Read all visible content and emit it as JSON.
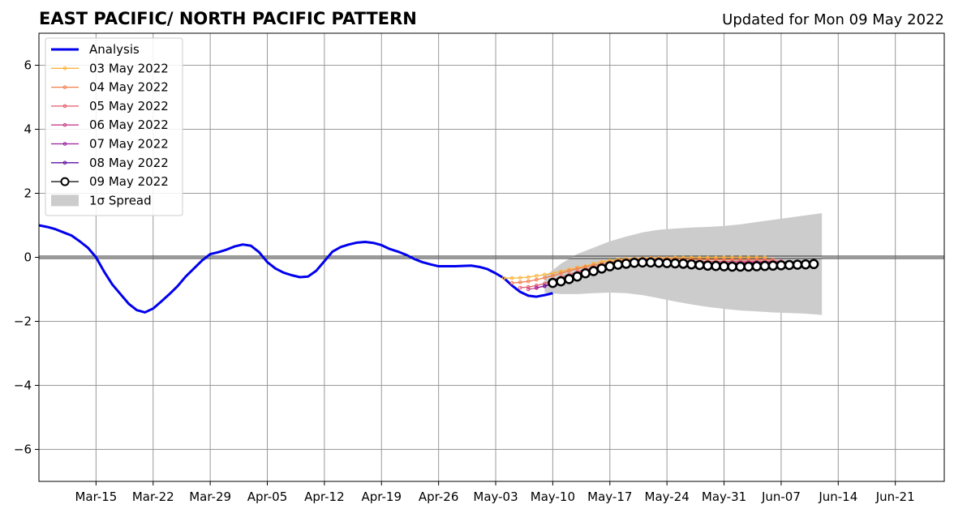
{
  "chart_data": {
    "type": "line",
    "title": "EAST PACIFIC/ NORTH PACIFIC PATTERN",
    "subtitle": "Updated for Mon 09 May 2022",
    "xlabel": "",
    "ylabel": "",
    "x_axis": {
      "kind": "date",
      "range": [
        "2022-03-08",
        "2022-06-27"
      ],
      "tick_dates": [
        "2022-03-15",
        "2022-03-22",
        "2022-03-29",
        "2022-04-05",
        "2022-04-12",
        "2022-04-19",
        "2022-04-26",
        "2022-05-03",
        "2022-05-10",
        "2022-05-17",
        "2022-05-24",
        "2022-05-31",
        "2022-06-07",
        "2022-06-14",
        "2022-06-21"
      ],
      "tick_labels": [
        "Mar-15",
        "Mar-22",
        "Mar-29",
        "Apr-05",
        "Apr-12",
        "Apr-19",
        "Apr-26",
        "May-03",
        "May-10",
        "May-17",
        "May-24",
        "May-31",
        "Jun-07",
        "Jun-14",
        "Jun-21"
      ]
    },
    "y_axis": {
      "range": [
        -7,
        7
      ],
      "ticks": [
        -6,
        -4,
        -2,
        0,
        2,
        4,
        6
      ],
      "tick_labels": [
        "−6",
        "−4",
        "−2",
        "0",
        "2",
        "4",
        "6"
      ]
    },
    "grid": true,
    "zero_line": true,
    "legend_position": "top-left",
    "analysis": {
      "name": "Analysis",
      "color": "#0000ee",
      "points": [
        [
          "2022-03-08",
          1.0
        ],
        [
          "2022-03-09",
          0.95
        ],
        [
          "2022-03-10",
          0.88
        ],
        [
          "2022-03-11",
          0.78
        ],
        [
          "2022-03-12",
          0.68
        ],
        [
          "2022-03-13",
          0.5
        ],
        [
          "2022-03-14",
          0.3
        ],
        [
          "2022-03-15",
          0.0
        ],
        [
          "2022-03-16",
          -0.45
        ],
        [
          "2022-03-17",
          -0.85
        ],
        [
          "2022-03-18",
          -1.15
        ],
        [
          "2022-03-19",
          -1.45
        ],
        [
          "2022-03-20",
          -1.65
        ],
        [
          "2022-03-21",
          -1.72
        ],
        [
          "2022-03-22",
          -1.6
        ],
        [
          "2022-03-23",
          -1.38
        ],
        [
          "2022-03-24",
          -1.15
        ],
        [
          "2022-03-25",
          -0.9
        ],
        [
          "2022-03-26",
          -0.6
        ],
        [
          "2022-03-27",
          -0.35
        ],
        [
          "2022-03-28",
          -0.1
        ],
        [
          "2022-03-29",
          0.1
        ],
        [
          "2022-03-30",
          0.16
        ],
        [
          "2022-03-31",
          0.24
        ],
        [
          "2022-04-01",
          0.34
        ],
        [
          "2022-04-02",
          0.4
        ],
        [
          "2022-04-03",
          0.36
        ],
        [
          "2022-04-04",
          0.16
        ],
        [
          "2022-04-05",
          -0.15
        ],
        [
          "2022-04-06",
          -0.35
        ],
        [
          "2022-04-07",
          -0.48
        ],
        [
          "2022-04-08",
          -0.56
        ],
        [
          "2022-04-09",
          -0.62
        ],
        [
          "2022-04-10",
          -0.6
        ],
        [
          "2022-04-11",
          -0.42
        ],
        [
          "2022-04-12",
          -0.12
        ],
        [
          "2022-04-13",
          0.18
        ],
        [
          "2022-04-14",
          0.32
        ],
        [
          "2022-04-15",
          0.4
        ],
        [
          "2022-04-16",
          0.46
        ],
        [
          "2022-04-17",
          0.48
        ],
        [
          "2022-04-18",
          0.45
        ],
        [
          "2022-04-19",
          0.38
        ],
        [
          "2022-04-20",
          0.26
        ],
        [
          "2022-04-21",
          0.18
        ],
        [
          "2022-04-22",
          0.08
        ],
        [
          "2022-04-23",
          -0.05
        ],
        [
          "2022-04-24",
          -0.15
        ],
        [
          "2022-04-25",
          -0.22
        ],
        [
          "2022-04-26",
          -0.28
        ],
        [
          "2022-04-27",
          -0.28
        ],
        [
          "2022-04-28",
          -0.28
        ],
        [
          "2022-04-29",
          -0.27
        ],
        [
          "2022-04-30",
          -0.26
        ],
        [
          "2022-05-01",
          -0.3
        ],
        [
          "2022-05-02",
          -0.37
        ],
        [
          "2022-05-03",
          -0.5
        ],
        [
          "2022-05-04",
          -0.65
        ],
        [
          "2022-05-05",
          -0.88
        ],
        [
          "2022-05-06",
          -1.08
        ],
        [
          "2022-05-07",
          -1.2
        ],
        [
          "2022-05-08",
          -1.23
        ],
        [
          "2022-05-09",
          -1.18
        ],
        [
          "2022-05-10",
          -1.12
        ]
      ]
    },
    "spread": {
      "name": "1σ Spread",
      "color": "#cccccc",
      "dates": [
        "2022-05-09",
        "2022-05-11",
        "2022-05-13",
        "2022-05-15",
        "2022-05-17",
        "2022-05-19",
        "2022-05-21",
        "2022-05-23",
        "2022-05-25",
        "2022-05-27",
        "2022-05-29",
        "2022-05-31",
        "2022-06-02",
        "2022-06-04",
        "2022-06-06",
        "2022-06-08",
        "2022-06-10",
        "2022-06-12"
      ],
      "upper": [
        -0.6,
        -0.2,
        0.1,
        0.3,
        0.5,
        0.65,
        0.78,
        0.86,
        0.9,
        0.93,
        0.95,
        0.98,
        1.03,
        1.1,
        1.17,
        1.24,
        1.31,
        1.38
      ],
      "lower": [
        -1.1,
        -1.15,
        -1.15,
        -1.12,
        -1.1,
        -1.12,
        -1.18,
        -1.28,
        -1.38,
        -1.47,
        -1.55,
        -1.61,
        -1.66,
        -1.69,
        -1.72,
        -1.74,
        -1.76,
        -1.8
      ]
    },
    "series": [
      {
        "name": "03 May 2022",
        "color": "#fbb338",
        "start": "2022-05-04",
        "values": [
          -0.65,
          -0.65,
          -0.64,
          -0.62,
          -0.58,
          -0.54,
          -0.5,
          -0.44,
          -0.38,
          -0.32,
          -0.28,
          -0.2,
          -0.14,
          -0.1,
          -0.07,
          -0.05,
          -0.04,
          -0.03,
          -0.02,
          -0.02,
          -0.02,
          -0.01,
          -0.01,
          -0.01,
          -0.01,
          -0.01,
          -0.01,
          0.0,
          0.0,
          0.0,
          0.0,
          0.0,
          0.0
        ]
      },
      {
        "name": "04 May 2022",
        "color": "#f57d4a",
        "start": "2022-05-05",
        "values": [
          -0.8,
          -0.78,
          -0.75,
          -0.7,
          -0.64,
          -0.58,
          -0.5,
          -0.42,
          -0.36,
          -0.3,
          -0.25,
          -0.2,
          -0.15,
          -0.11,
          -0.08,
          -0.06,
          -0.05,
          -0.04,
          -0.04,
          -0.04,
          -0.05,
          -0.06,
          -0.06,
          -0.07,
          -0.07,
          -0.07,
          -0.07,
          -0.07,
          -0.07,
          -0.07,
          -0.07,
          -0.07,
          -0.07
        ]
      },
      {
        "name": "05 May 2022",
        "color": "#e5596b",
        "start": "2022-05-06",
        "values": [
          -0.95,
          -0.93,
          -0.88,
          -0.82,
          -0.72,
          -0.62,
          -0.54,
          -0.46,
          -0.38,
          -0.32,
          -0.26,
          -0.22,
          -0.18,
          -0.15,
          -0.12,
          -0.11,
          -0.1,
          -0.1,
          -0.1,
          -0.11,
          -0.12,
          -0.12,
          -0.13,
          -0.13,
          -0.13,
          -0.13,
          -0.13,
          -0.12,
          -0.12,
          -0.12,
          -0.12,
          -0.12,
          -0.12
        ]
      },
      {
        "name": "06 May 2022",
        "color": "#c9408b",
        "start": "2022-05-07",
        "values": [
          -1.0,
          -0.96,
          -0.9,
          -0.8,
          -0.7,
          -0.6,
          -0.5,
          -0.42,
          -0.36,
          -0.3,
          -0.25,
          -0.21,
          -0.18,
          -0.16,
          -0.14,
          -0.14,
          -0.14,
          -0.15,
          -0.16,
          -0.17,
          -0.17,
          -0.18,
          -0.18,
          -0.18,
          -0.17,
          -0.17,
          -0.16,
          -0.16,
          -0.15,
          -0.15,
          -0.15,
          -0.15,
          -0.15
        ]
      },
      {
        "name": "07 May 2022",
        "color": "#9a1da0",
        "start": "2022-05-08",
        "values": [
          -0.95,
          -0.9,
          -0.82,
          -0.72,
          -0.62,
          -0.53,
          -0.45,
          -0.38,
          -0.32,
          -0.27,
          -0.23,
          -0.2,
          -0.18,
          -0.17,
          -0.17,
          -0.18,
          -0.19,
          -0.2,
          -0.21,
          -0.22,
          -0.22,
          -0.22,
          -0.22,
          -0.21,
          -0.2,
          -0.19,
          -0.18,
          -0.17,
          -0.17,
          -0.16,
          -0.16,
          -0.16,
          -0.16
        ]
      },
      {
        "name": "08 May 2022",
        "color": "#5d0fa0",
        "start": "2022-05-09",
        "values": [
          -0.9,
          -0.82,
          -0.72,
          -0.62,
          -0.53,
          -0.45,
          -0.38,
          -0.32,
          -0.27,
          -0.23,
          -0.2,
          -0.19,
          -0.18,
          -0.18,
          -0.19,
          -0.2,
          -0.21,
          -0.22,
          -0.23,
          -0.24,
          -0.24,
          -0.24,
          -0.24,
          -0.23,
          -0.22,
          -0.21,
          -0.2,
          -0.2,
          -0.19,
          -0.19,
          -0.19,
          -0.19,
          -0.19
        ]
      },
      {
        "name": "09 May 2022",
        "color": "#000000",
        "start": "2022-05-10",
        "values": [
          -0.8,
          -0.75,
          -0.68,
          -0.6,
          -0.5,
          -0.43,
          -0.35,
          -0.28,
          -0.23,
          -0.2,
          -0.17,
          -0.16,
          -0.16,
          -0.17,
          -0.18,
          -0.19,
          -0.2,
          -0.22,
          -0.24,
          -0.26,
          -0.27,
          -0.28,
          -0.29,
          -0.29,
          -0.29,
          -0.28,
          -0.27,
          -0.26,
          -0.25,
          -0.24,
          -0.23,
          -0.22,
          -0.21
        ]
      }
    ]
  }
}
